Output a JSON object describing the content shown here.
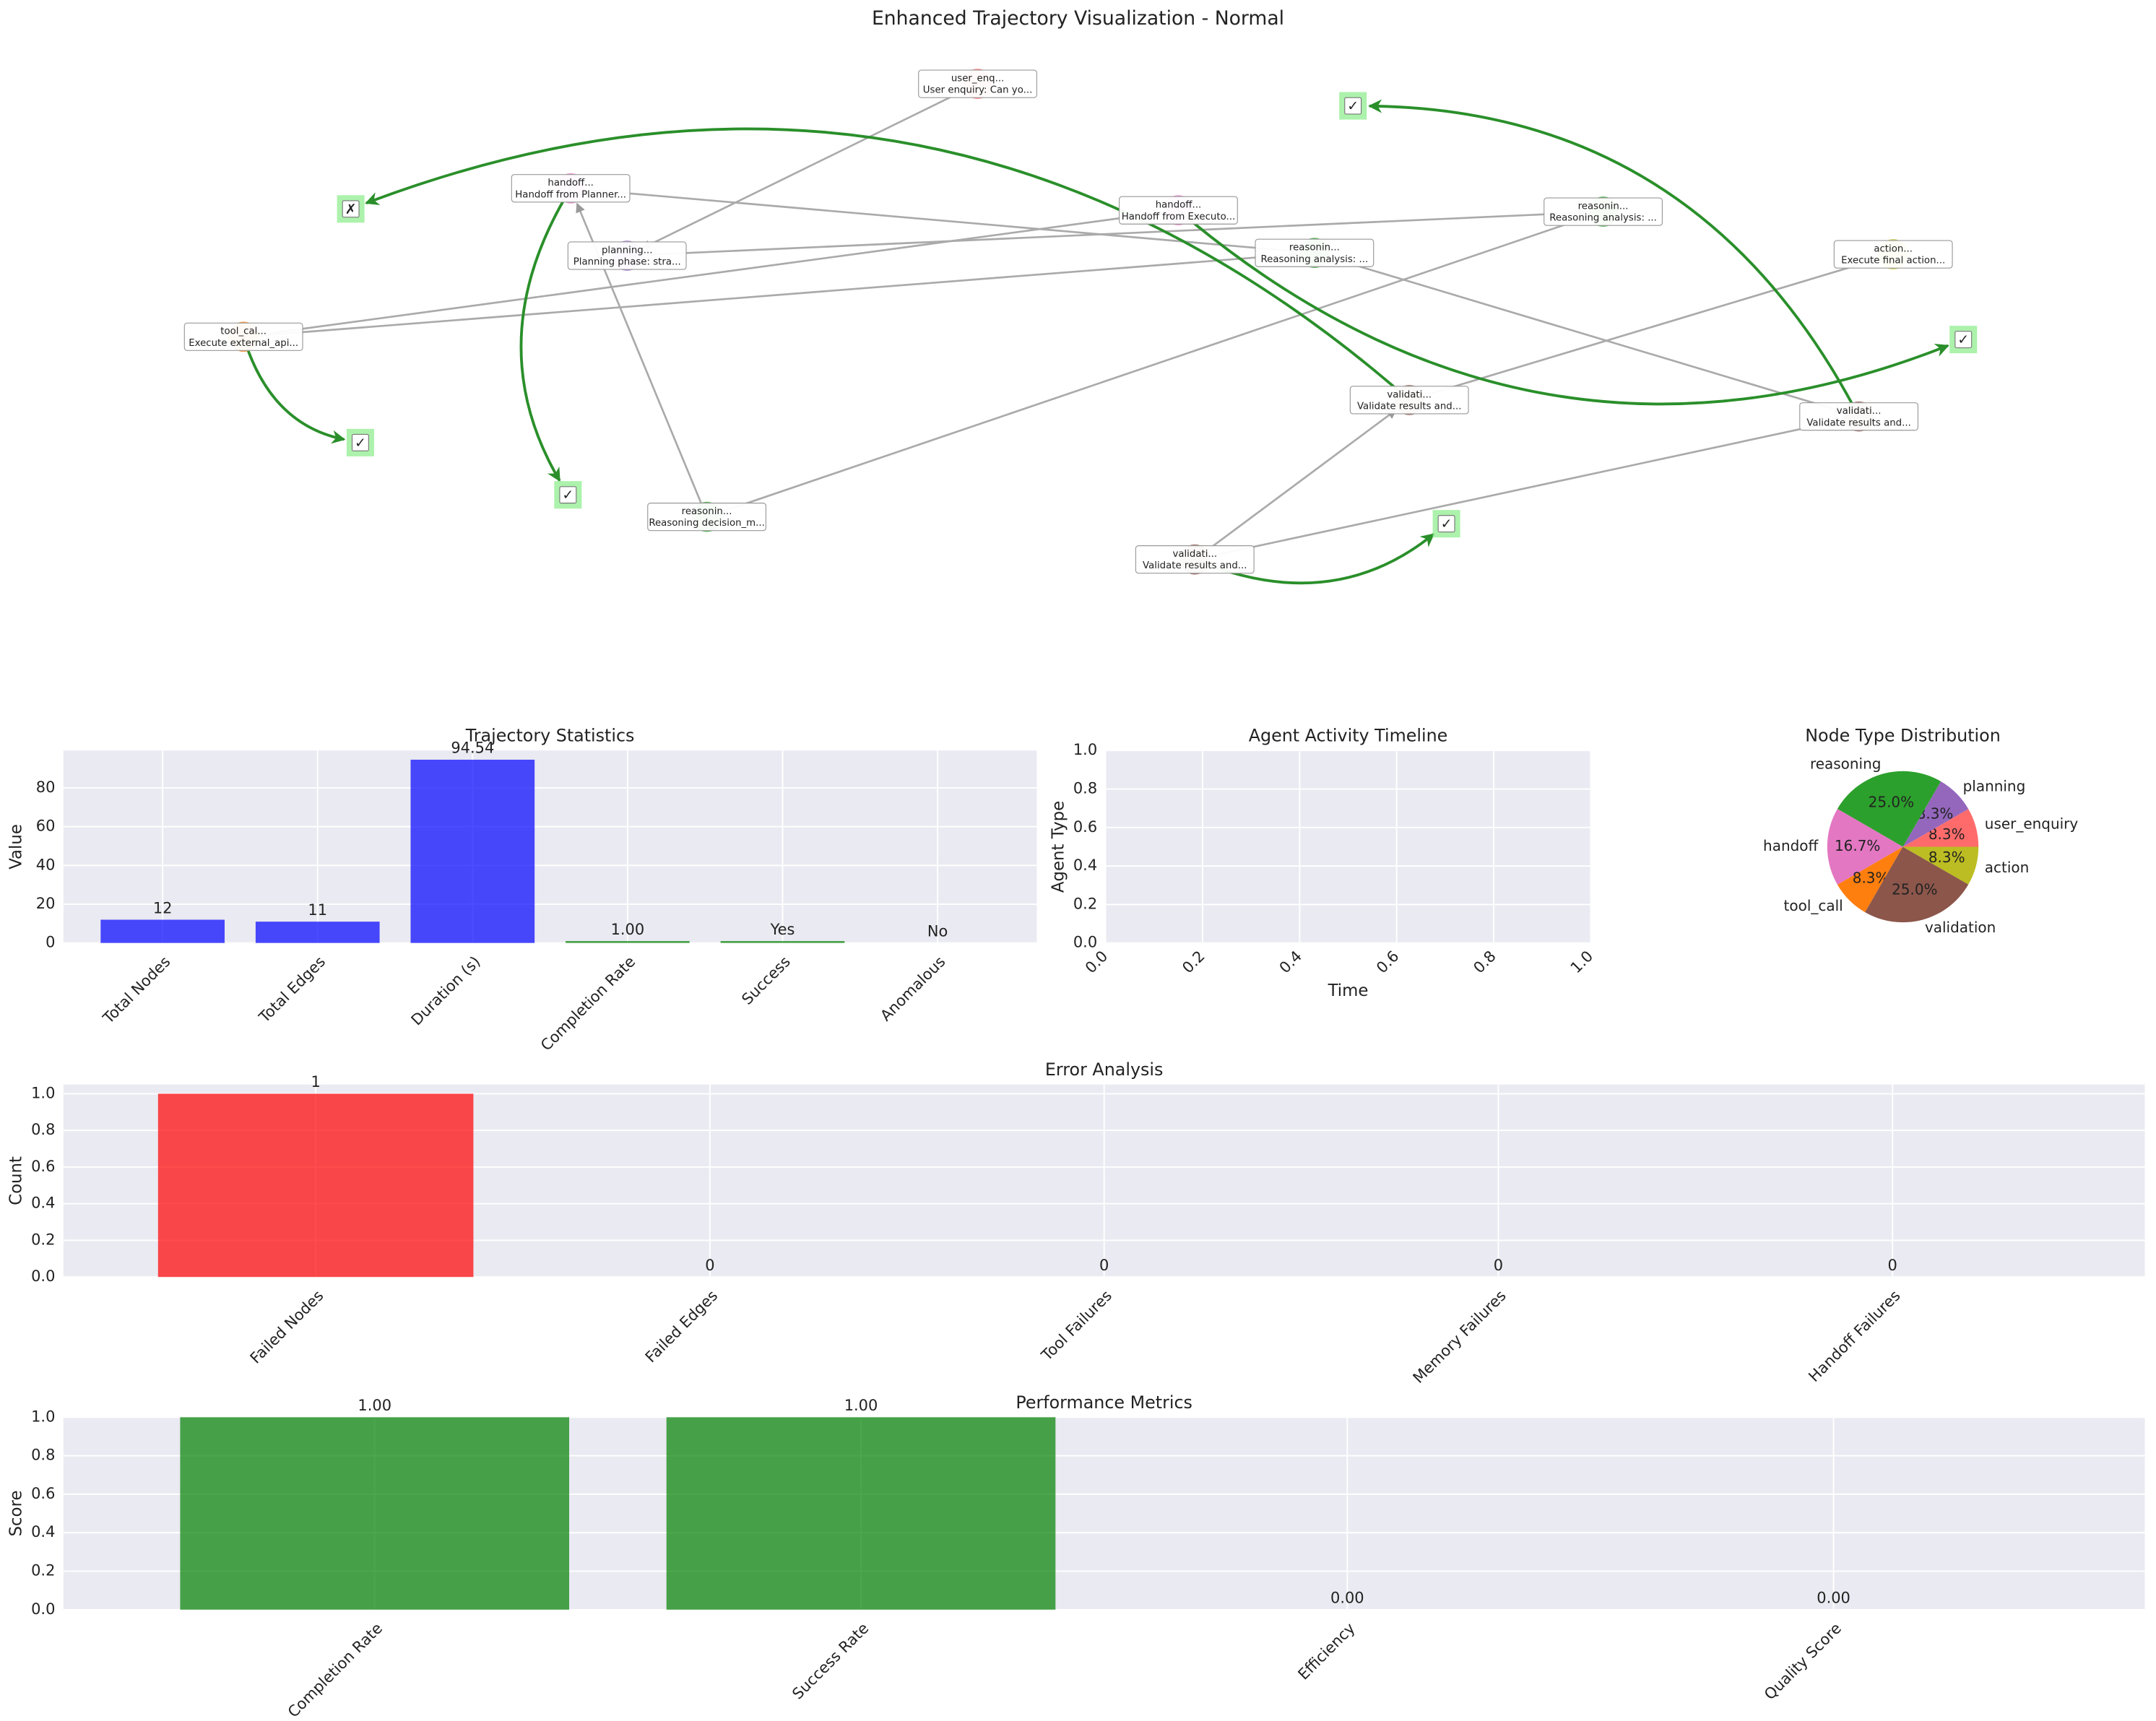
{
  "chart_data": [
    {
      "type": "network",
      "title": "Enhanced Trajectory Visualization - Normal",
      "nodes": [
        {
          "name": "user_enq...",
          "text": "User enquiry: Can yo...",
          "color": "#ff6b6b"
        },
        {
          "name": "handoff...",
          "text": "Handoff from Planner...",
          "color": "#e377c2"
        },
        {
          "name": "planning...",
          "text": "Planning phase: stra...",
          "color": "#9467bd"
        },
        {
          "name": "tool_cal...",
          "text": "Execute external_api...",
          "color": "#ff7f0e"
        },
        {
          "name": "handoff...",
          "text": "Handoff from Executo...",
          "color": "#e377c2"
        },
        {
          "name": "reasonin...",
          "text": "Reasoning analysis: ...",
          "color": "#2ca02c"
        },
        {
          "name": "reasonin...",
          "text": "Reasoning analysis: ...",
          "color": "#2ca02c"
        },
        {
          "name": "action...",
          "text": "Execute final action...",
          "color": "#bcbd22"
        },
        {
          "name": "validati...",
          "text": "Validate results and...",
          "color": "#8c564b"
        },
        {
          "name": "validati...",
          "text": "Validate results and...",
          "color": "#8c564b"
        },
        {
          "name": "reasonin...",
          "text": "Reasoning decision_m...",
          "color": "#2ca02c"
        },
        {
          "name": "validati...",
          "text": "Validate results and...",
          "color": "#8c564b"
        }
      ],
      "edges": [
        [
          0,
          2
        ],
        [
          10,
          1
        ],
        [
          1,
          5
        ],
        [
          2,
          6
        ],
        [
          3,
          4
        ],
        [
          3,
          5
        ],
        [
          5,
          9
        ],
        [
          10,
          6
        ],
        [
          8,
          7
        ],
        [
          11,
          8
        ],
        [
          11,
          9
        ]
      ],
      "status": [
        {
          "node": 3,
          "symbol": "✓"
        },
        {
          "node": 1,
          "symbol": "✓"
        },
        {
          "node": 8,
          "symbol": "✗"
        },
        {
          "node": 4,
          "symbol": "✓"
        },
        {
          "node": 9,
          "symbol": "✓"
        },
        {
          "node": 11,
          "symbol": "✓"
        }
      ]
    },
    {
      "type": "bar",
      "title": "Trajectory Statistics",
      "ylabel": "Value",
      "categories": [
        "Total Nodes",
        "Total Edges",
        "Duration (s)",
        "Completion Rate",
        "Success",
        "Anomalous"
      ],
      "values": [
        12,
        11,
        94.54,
        1,
        1,
        0
      ],
      "value_labels": [
        "12",
        "11",
        "94.54",
        "1.00",
        "Yes",
        "No"
      ],
      "colors": [
        "blue",
        "blue",
        "blue",
        "green",
        "green",
        "red"
      ],
      "ylim": [
        0,
        99.27
      ],
      "yticks": [
        0,
        20,
        40,
        60,
        80
      ],
      "grid": true
    },
    {
      "type": "timeline",
      "title": "Agent Activity Timeline",
      "xlabel": "Time",
      "ylabel": "Agent Type",
      "xlim": [
        0,
        1
      ],
      "ylim": [
        0,
        1
      ],
      "xticks": [
        {
          "value": 0,
          "label": "0.0"
        },
        {
          "value": 0.2,
          "label": "0.2"
        },
        {
          "value": 0.4,
          "label": "0.4"
        },
        {
          "value": 0.6,
          "label": "0.6"
        },
        {
          "value": 0.8,
          "label": "0.8"
        },
        {
          "value": 1,
          "label": "1.0"
        }
      ],
      "yticks": [
        {
          "value": 0,
          "label": "0.0"
        },
        {
          "value": 0.2,
          "label": "0.2"
        },
        {
          "value": 0.4,
          "label": "0.4"
        },
        {
          "value": 0.6,
          "label": "0.6"
        },
        {
          "value": 0.8,
          "label": "0.8"
        },
        {
          "value": 1,
          "label": "1.0"
        }
      ],
      "grid": true
    },
    {
      "type": "pie",
      "title": "Node Type Distribution",
      "categories": [
        "user_enquiry",
        "planning",
        "reasoning",
        "handoff",
        "tool_call",
        "validation",
        "action"
      ],
      "values": [
        8.3,
        8.3,
        25.0,
        16.7,
        8.3,
        25.0,
        8.3
      ],
      "value_labels": [
        "8.3%",
        "8.3%",
        "25.0%",
        "16.7%",
        "8.3%",
        "25.0%",
        "8.3%"
      ],
      "colors": [
        "#ff6b6b",
        "#9467bd",
        "#2ca02c",
        "#e377c2",
        "#ff7f0e",
        "#8c564b",
        "#bcbd22"
      ]
    },
    {
      "type": "bar",
      "title": "Error Analysis",
      "ylabel": "Count",
      "categories": [
        "Failed Nodes",
        "Failed Edges",
        "Tool Failures",
        "Memory Failures",
        "Handoff Failures"
      ],
      "values": [
        1,
        0,
        0,
        0,
        0
      ],
      "colors": [
        "red",
        "red",
        "red",
        "red",
        "red"
      ],
      "ylim": [
        0,
        1.05
      ],
      "yticks": [
        {
          "value": 0,
          "label": "0.0"
        },
        {
          "value": 0.2,
          "label": "0.2"
        },
        {
          "value": 0.4,
          "label": "0.4"
        },
        {
          "value": 0.6,
          "label": "0.6"
        },
        {
          "value": 0.8,
          "label": "0.8"
        },
        {
          "value": 1,
          "label": "1.0"
        }
      ],
      "grid": true
    },
    {
      "type": "bar",
      "title": "Performance Metrics",
      "ylabel": "Score",
      "categories": [
        "Completion Rate",
        "Success Rate",
        "Efficiency",
        "Quality Score"
      ],
      "values": [
        1,
        1,
        0,
        0
      ],
      "value_labels": [
        "1.00",
        "1.00",
        "0.00",
        "0.00"
      ],
      "colors": [
        "green",
        "green",
        "green",
        "green"
      ],
      "ylim": [
        0,
        1
      ],
      "yticks": [
        {
          "value": 0,
          "label": "0.0"
        },
        {
          "value": 0.2,
          "label": "0.2"
        },
        {
          "value": 0.4,
          "label": "0.4"
        },
        {
          "value": 0.6,
          "label": "0.6"
        },
        {
          "value": 0.8,
          "label": "0.8"
        },
        {
          "value": 1,
          "label": "1.0"
        }
      ],
      "grid": true
    }
  ]
}
